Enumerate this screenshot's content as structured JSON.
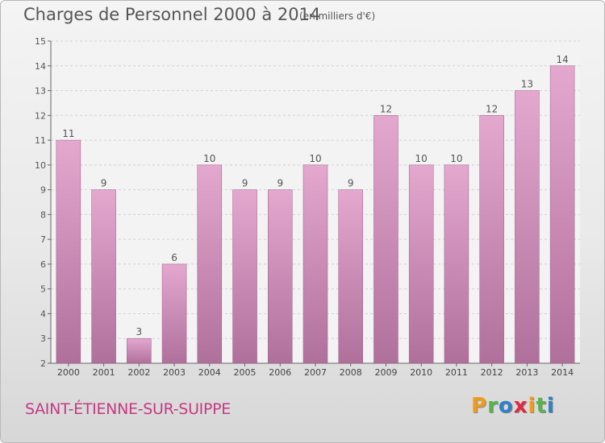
{
  "chart_data": {
    "type": "bar",
    "title": "Charges de Personnel 2000 à 2014",
    "subtitle": "(en milliers d'€)",
    "categories": [
      "2000",
      "2001",
      "2002",
      "2003",
      "2004",
      "2005",
      "2006",
      "2007",
      "2008",
      "2009",
      "2010",
      "2011",
      "2012",
      "2013",
      "2014"
    ],
    "values": [
      11,
      9,
      3,
      6,
      10,
      9,
      9,
      10,
      9,
      12,
      10,
      10,
      12,
      13,
      14
    ],
    "ylim": [
      2,
      15
    ],
    "yticks": [
      2,
      3,
      4,
      5,
      6,
      7,
      8,
      9,
      10,
      11,
      12,
      13,
      14,
      15
    ],
    "grid": true,
    "bar_color_top": "#e4a8cf",
    "bar_color_bottom": "#b0709c"
  },
  "footer": {
    "place_name": "SAINT-ÉTIENNE-SUR-SUIPPE",
    "logo_text": "Proxiti",
    "logo_colors": [
      "#f29a1c",
      "#5ab34a",
      "#2f7fc9",
      "#e2293f",
      "#f29a1c",
      "#5ab34a",
      "#2f7fc9"
    ]
  }
}
